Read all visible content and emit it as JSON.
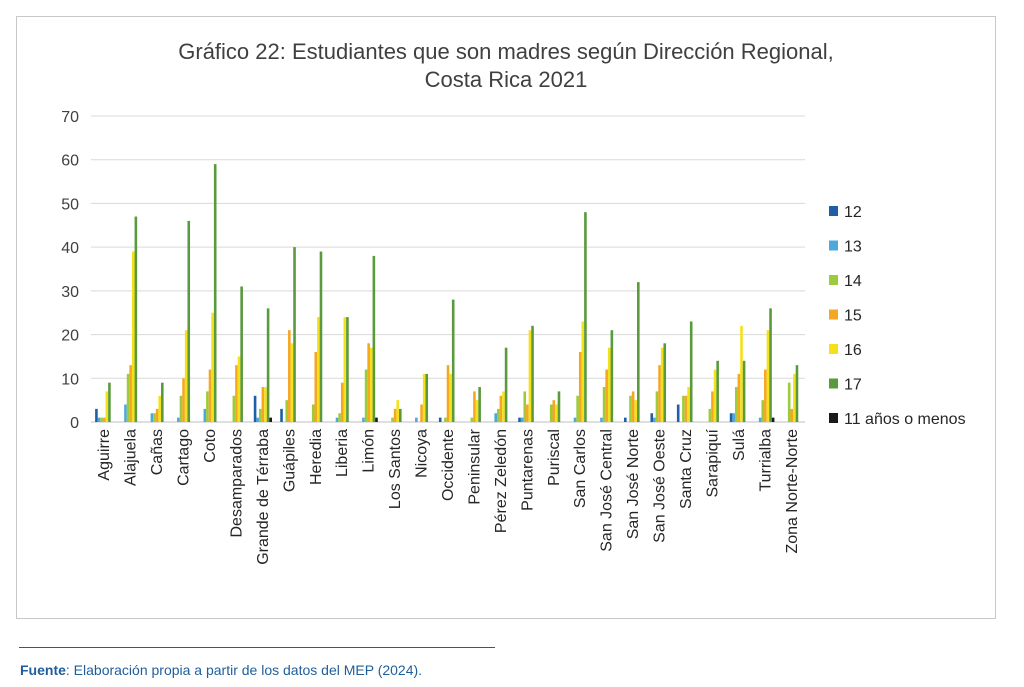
{
  "chart_data": {
    "type": "bar",
    "title_line1": "Gráfico 22: Estudiantes que son madres según Dirección Regional,",
    "title_line2": "Costa Rica 2021",
    "xlabel": "",
    "ylabel": "",
    "ylim": [
      0,
      70
    ],
    "yticks": [
      0,
      10,
      20,
      30,
      40,
      50,
      60,
      70
    ],
    "grid": true,
    "legend_position": "right",
    "categories": [
      "Aguirre",
      "Alajuela",
      "Cañas",
      "Cartago",
      "Coto",
      "Desamparados",
      "Grande de Térraba",
      "Guápiles",
      "Heredia",
      "Liberia",
      "Limón",
      "Los Santos",
      "Nicoya",
      "Occidente",
      "Peninsular",
      "Pérez Zeledón",
      "Puntarenas",
      "Puriscal",
      "San Carlos",
      "San José Central",
      "San José Norte",
      "San José Oeste",
      "Santa Cruz",
      "Sarapiquí",
      "Sulá",
      "Turrialba",
      "Zona Norte-Norte"
    ],
    "series": [
      {
        "name": "12",
        "color": "#1f5fa8",
        "values": [
          3,
          0,
          0,
          0,
          0,
          0,
          6,
          3,
          0,
          0,
          0,
          0,
          0,
          1,
          0,
          0,
          1,
          0,
          0,
          0,
          1,
          2,
          4,
          0,
          2,
          0,
          0
        ]
      },
      {
        "name": "13",
        "color": "#4ea8dc",
        "values": [
          1,
          4,
          2,
          1,
          3,
          0,
          1,
          0,
          0,
          1,
          1,
          0,
          1,
          0,
          0,
          2,
          1,
          0,
          1,
          1,
          0,
          1,
          0,
          0,
          2,
          1,
          0
        ]
      },
      {
        "name": "14",
        "color": "#9ccc3c",
        "values": [
          1,
          11,
          2,
          6,
          7,
          6,
          3,
          5,
          4,
          2,
          12,
          1,
          0,
          1,
          1,
          3,
          7,
          4,
          6,
          8,
          6,
          7,
          6,
          3,
          8,
          5,
          9
        ]
      },
      {
        "name": "15",
        "color": "#f5a623",
        "values": [
          1,
          13,
          3,
          10,
          12,
          13,
          8,
          21,
          16,
          9,
          18,
          3,
          4,
          13,
          7,
          6,
          4,
          5,
          16,
          12,
          7,
          13,
          6,
          7,
          11,
          12,
          3
        ]
      },
      {
        "name": "16",
        "color": "#f5e11a",
        "values": [
          7,
          39,
          6,
          21,
          25,
          15,
          8,
          18,
          24,
          24,
          17,
          5,
          11,
          11,
          5,
          7,
          21,
          4,
          23,
          17,
          5,
          17,
          8,
          12,
          22,
          21,
          11
        ]
      },
      {
        "name": "17",
        "color": "#5a9a3c",
        "values": [
          9,
          47,
          9,
          46,
          59,
          31,
          26,
          40,
          39,
          24,
          38,
          3,
          11,
          28,
          8,
          17,
          22,
          7,
          48,
          21,
          32,
          18,
          23,
          14,
          14,
          26,
          13
        ]
      },
      {
        "name": "11 años o menos",
        "color": "#1a1a1a",
        "values": [
          0,
          0,
          0,
          0,
          0,
          0,
          1,
          0,
          0,
          0,
          1,
          0,
          0,
          0,
          0,
          0,
          0,
          0,
          0,
          0,
          0,
          0,
          0,
          0,
          0,
          1,
          0
        ]
      }
    ]
  },
  "source": {
    "label": "Fuente",
    "text": ": Elaboración propia a partir de los datos del MEP (2024)."
  }
}
